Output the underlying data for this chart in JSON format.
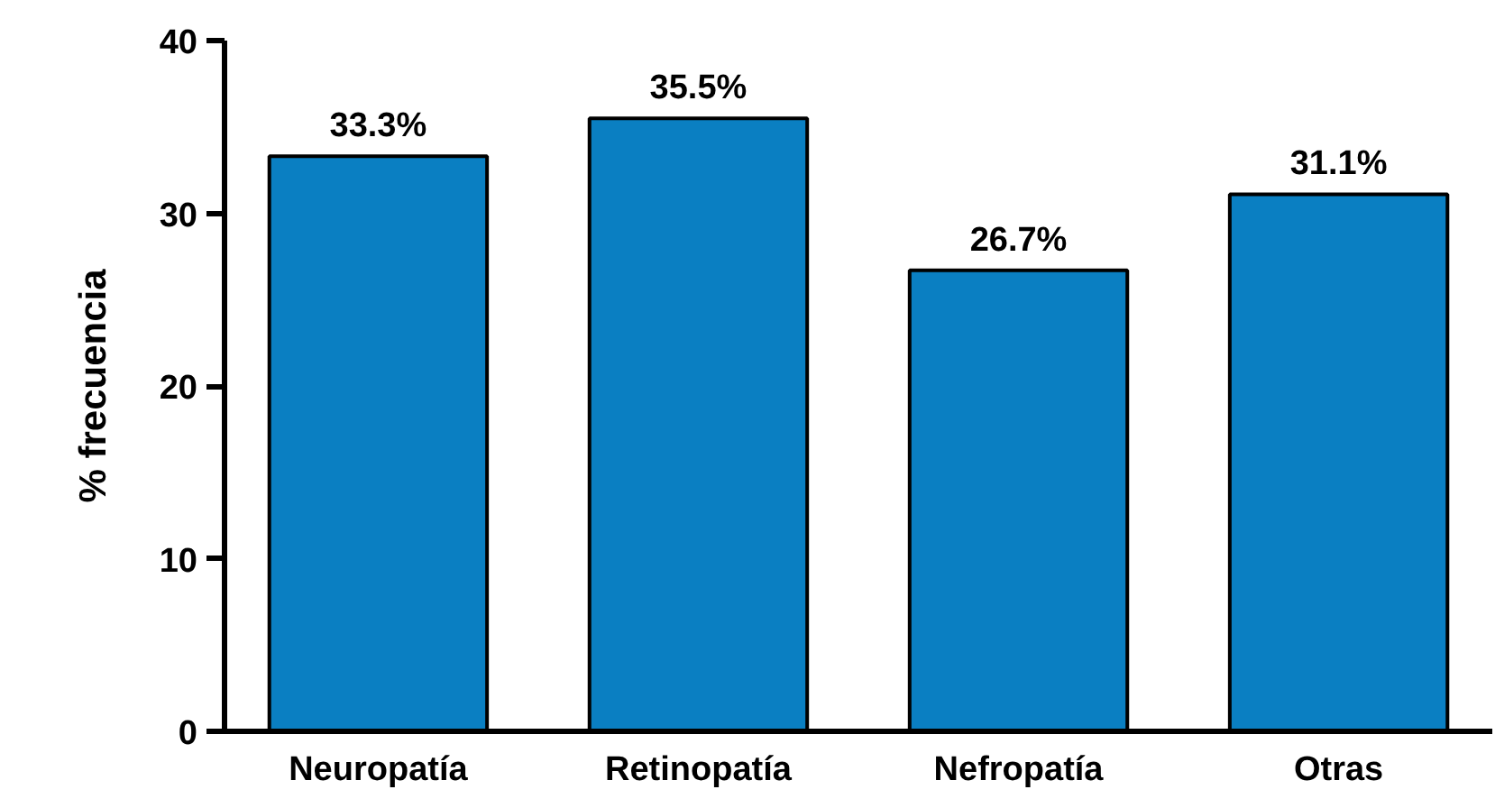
{
  "chart_data": {
    "type": "bar",
    "ylabel": "% frecuencia",
    "categories": [
      "Neuropatía",
      "Retinopatía",
      "Nefropatía",
      "Otras"
    ],
    "values": [
      33.3,
      35.5,
      26.7,
      31.1
    ],
    "value_labels": [
      "33.3%",
      "35.5%",
      "26.7%",
      "31.1%"
    ],
    "color": "#0a7fc2",
    "ylim": [
      0,
      40
    ],
    "yticks": [
      0,
      10,
      20,
      30,
      40
    ],
    "grid": false
  }
}
